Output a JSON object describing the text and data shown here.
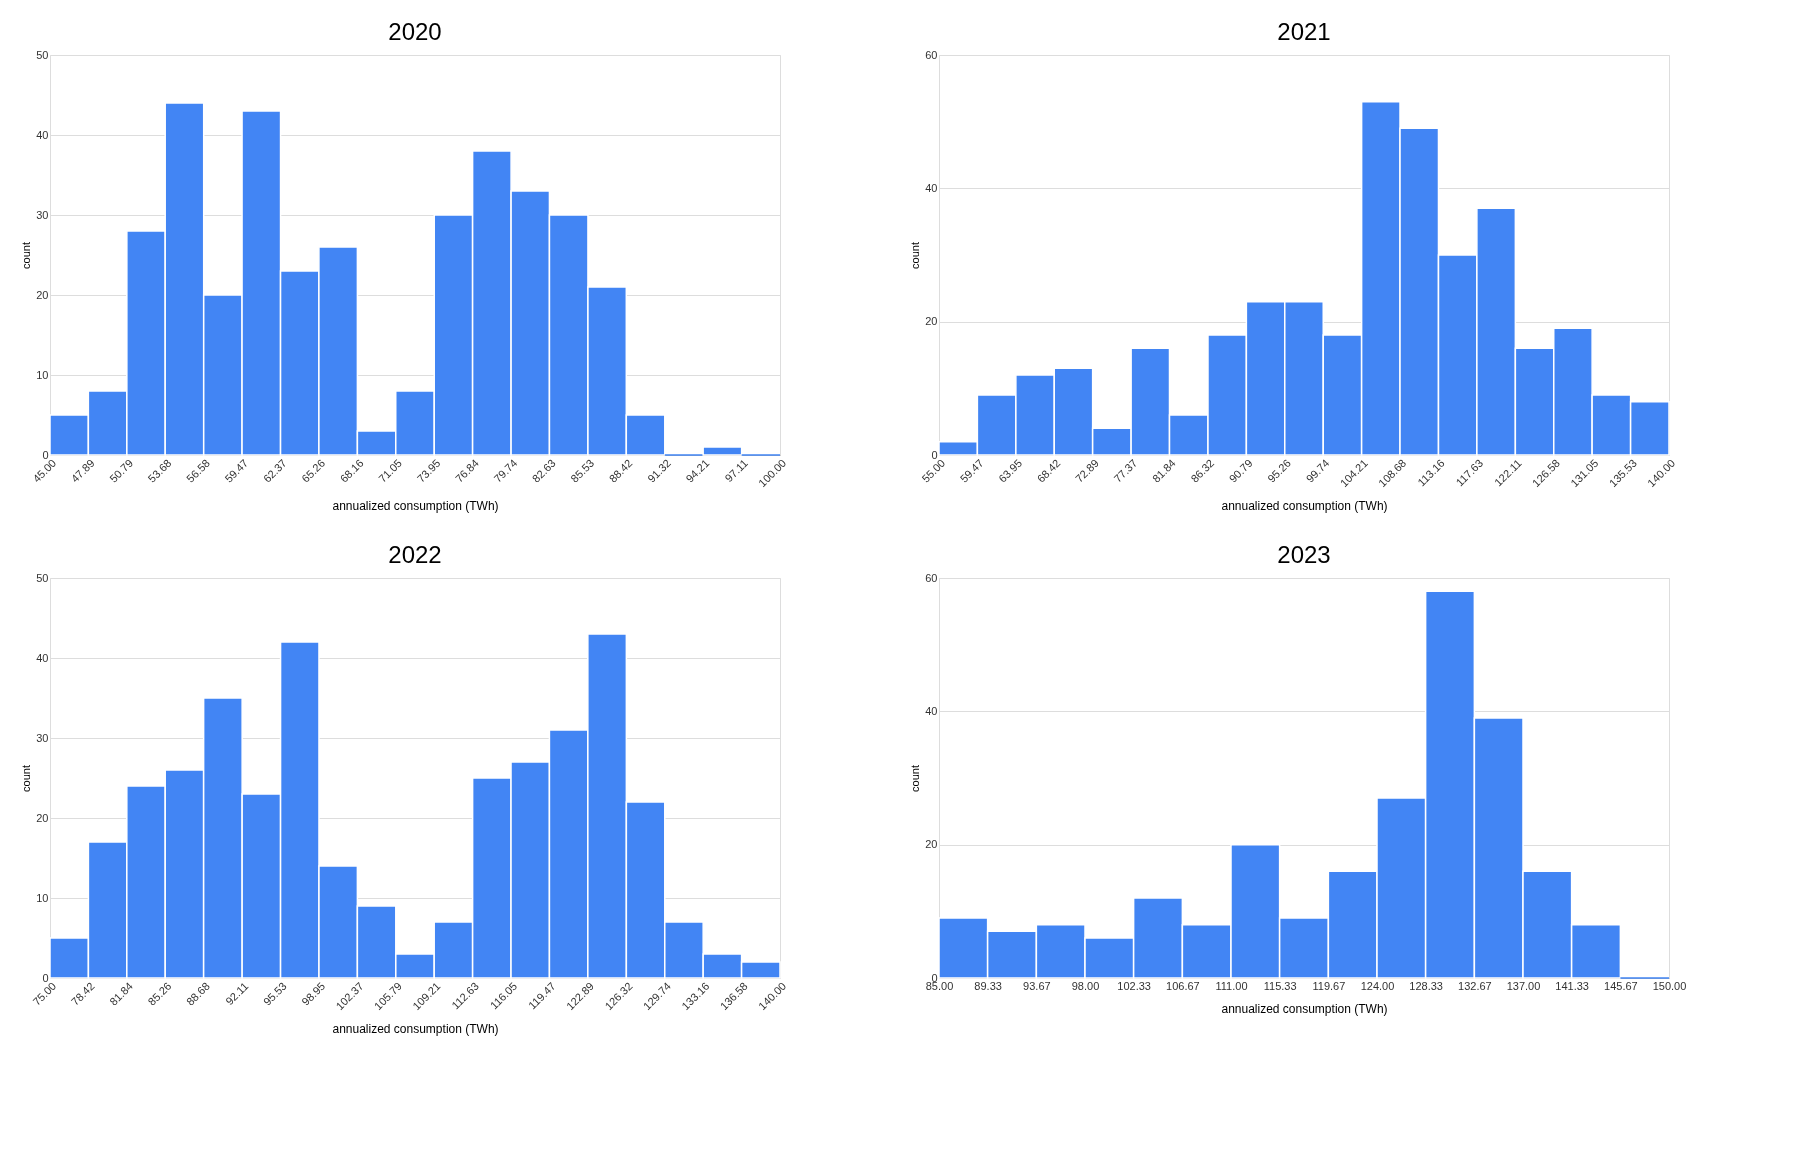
{
  "chart_data": [
    {
      "type": "histogram",
      "title": "2020",
      "xlabel": "annualized consumption (TWh)",
      "ylabel": "count",
      "color": "#4285f4",
      "grid": "y",
      "bins": [
        45.0,
        47.89,
        50.79,
        53.68,
        56.58,
        59.47,
        62.37,
        65.26,
        68.16,
        71.05,
        73.95,
        76.84,
        79.74,
        82.63,
        85.53,
        88.42,
        91.32,
        94.21,
        97.11,
        100.0
      ],
      "values": [
        5,
        8,
        28,
        44,
        20,
        43,
        23,
        26,
        3,
        8,
        30,
        38,
        33,
        30,
        21,
        5,
        0,
        1,
        0
      ],
      "xlim": [
        45,
        100
      ],
      "xticks": [
        {
          "value": 45.0,
          "label": "45.00"
        },
        {
          "value": 47.89,
          "label": "47.89"
        },
        {
          "value": 50.79,
          "label": "50.79"
        },
        {
          "value": 53.68,
          "label": "53.68"
        },
        {
          "value": 56.58,
          "label": "56.58"
        },
        {
          "value": 59.47,
          "label": "59.47"
        },
        {
          "value": 62.37,
          "label": "62.37"
        },
        {
          "value": 65.26,
          "label": "65.26"
        },
        {
          "value": 68.16,
          "label": "68.16"
        },
        {
          "value": 71.05,
          "label": "71.05"
        },
        {
          "value": 73.95,
          "label": "73.95"
        },
        {
          "value": 76.84,
          "label": "76.84"
        },
        {
          "value": 79.74,
          "label": "79.74"
        },
        {
          "value": 82.63,
          "label": "82.63"
        },
        {
          "value": 85.53,
          "label": "85.53"
        },
        {
          "value": 88.42,
          "label": "88.42"
        },
        {
          "value": 91.32,
          "label": "91.32"
        },
        {
          "value": 94.21,
          "label": "94.21"
        },
        {
          "value": 97.11,
          "label": "97.11"
        },
        {
          "value": 100.0,
          "label": "100.00"
        }
      ],
      "ylim": [
        0,
        50
      ],
      "yticks": [
        0,
        10,
        20,
        30,
        40,
        50
      ]
    },
    {
      "type": "histogram",
      "title": "2021",
      "xlabel": "annualized consumption (TWh)",
      "ylabel": "count",
      "color": "#4285f4",
      "grid": "y",
      "bins": [
        55.0,
        59.47,
        63.95,
        68.42,
        72.89,
        77.37,
        81.84,
        86.32,
        90.79,
        95.26,
        99.74,
        104.21,
        108.68,
        113.16,
        117.63,
        122.11,
        126.58,
        131.05,
        135.53,
        140.0
      ],
      "values": [
        2,
        9,
        12,
        13,
        4,
        16,
        6,
        18,
        23,
        23,
        18,
        53,
        49,
        30,
        37,
        16,
        19,
        9,
        8
      ],
      "xlim": [
        55,
        140
      ],
      "xticks": [
        {
          "value": 55.0,
          "label": "55.00"
        },
        {
          "value": 59.47,
          "label": "59.47"
        },
        {
          "value": 63.95,
          "label": "63.95"
        },
        {
          "value": 68.42,
          "label": "68.42"
        },
        {
          "value": 72.89,
          "label": "72.89"
        },
        {
          "value": 77.37,
          "label": "77.37"
        },
        {
          "value": 81.84,
          "label": "81.84"
        },
        {
          "value": 86.32,
          "label": "86.32"
        },
        {
          "value": 90.79,
          "label": "90.79"
        },
        {
          "value": 95.26,
          "label": "95.26"
        },
        {
          "value": 99.74,
          "label": "99.74"
        },
        {
          "value": 104.21,
          "label": "104.21"
        },
        {
          "value": 108.68,
          "label": "108.68"
        },
        {
          "value": 113.16,
          "label": "113.16"
        },
        {
          "value": 117.63,
          "label": "117.63"
        },
        {
          "value": 122.11,
          "label": "122.11"
        },
        {
          "value": 126.58,
          "label": "126.58"
        },
        {
          "value": 131.05,
          "label": "131.05"
        },
        {
          "value": 135.53,
          "label": "135.53"
        },
        {
          "value": 140.0,
          "label": "140.00"
        }
      ],
      "ylim": [
        0,
        60
      ],
      "yticks": [
        0,
        20,
        40,
        60
      ]
    },
    {
      "type": "histogram",
      "title": "2022",
      "xlabel": "annualized consumption (TWh)",
      "ylabel": "count",
      "color": "#4285f4",
      "grid": "y",
      "bins": [
        75.0,
        78.42,
        81.84,
        85.26,
        88.68,
        92.11,
        95.53,
        98.95,
        102.37,
        105.79,
        109.21,
        112.63,
        116.05,
        119.47,
        122.89,
        126.32,
        129.74,
        133.16,
        136.58,
        140.0
      ],
      "values": [
        5,
        17,
        24,
        26,
        35,
        23,
        42,
        14,
        9,
        3,
        7,
        25,
        27,
        31,
        43,
        22,
        7,
        3,
        2
      ],
      "xlim": [
        75,
        140
      ],
      "xticks": [
        {
          "value": 75.0,
          "label": "75.00"
        },
        {
          "value": 78.42,
          "label": "78.42"
        },
        {
          "value": 81.84,
          "label": "81.84"
        },
        {
          "value": 85.26,
          "label": "85.26"
        },
        {
          "value": 88.68,
          "label": "88.68"
        },
        {
          "value": 92.11,
          "label": "92.11"
        },
        {
          "value": 95.53,
          "label": "95.53"
        },
        {
          "value": 98.95,
          "label": "98.95"
        },
        {
          "value": 102.37,
          "label": "102.37"
        },
        {
          "value": 105.79,
          "label": "105.79"
        },
        {
          "value": 109.21,
          "label": "109.21"
        },
        {
          "value": 112.63,
          "label": "112.63"
        },
        {
          "value": 116.05,
          "label": "116.05"
        },
        {
          "value": 119.47,
          "label": "119.47"
        },
        {
          "value": 122.89,
          "label": "122.89"
        },
        {
          "value": 126.32,
          "label": "126.32"
        },
        {
          "value": 129.74,
          "label": "129.74"
        },
        {
          "value": 133.16,
          "label": "133.16"
        },
        {
          "value": 136.58,
          "label": "136.58"
        },
        {
          "value": 140.0,
          "label": "140.00"
        }
      ],
      "ylim": [
        0,
        50
      ],
      "yticks": [
        0,
        10,
        20,
        30,
        40,
        50
      ]
    },
    {
      "type": "histogram",
      "title": "2023",
      "xlabel": "annualized consumption (TWh)",
      "ylabel": "count",
      "color": "#4285f4",
      "grid": "y",
      "bins": [
        85.0,
        89.33,
        93.67,
        98.0,
        102.33,
        106.67,
        111.0,
        115.33,
        119.67,
        124.0,
        128.33,
        132.67,
        137.0,
        141.33,
        145.67,
        150.0
      ],
      "values": [
        9,
        7,
        8,
        6,
        12,
        8,
        20,
        9,
        16,
        27,
        58,
        39,
        16,
        8,
        0
      ],
      "xlim": [
        85,
        150
      ],
      "xticks": [
        {
          "value": 85.0,
          "label": "85.00"
        },
        {
          "value": 89.33,
          "label": "89.33"
        },
        {
          "value": 93.67,
          "label": "93.67"
        },
        {
          "value": 98.0,
          "label": "98.00"
        },
        {
          "value": 102.33,
          "label": "102.33"
        },
        {
          "value": 106.67,
          "label": "106.67"
        },
        {
          "value": 111.0,
          "label": "111.00"
        },
        {
          "value": 115.33,
          "label": "115.33"
        },
        {
          "value": 119.67,
          "label": "119.67"
        },
        {
          "value": 124.0,
          "label": "124.00"
        },
        {
          "value": 128.33,
          "label": "128.33"
        },
        {
          "value": 132.67,
          "label": "132.67"
        },
        {
          "value": 137.0,
          "label": "137.00"
        },
        {
          "value": 141.33,
          "label": "141.33"
        },
        {
          "value": 145.67,
          "label": "145.67"
        },
        {
          "value": 150.0,
          "label": "150.00"
        }
      ],
      "ylim": [
        0,
        60
      ],
      "yticks": [
        0,
        20,
        40,
        60
      ]
    }
  ]
}
